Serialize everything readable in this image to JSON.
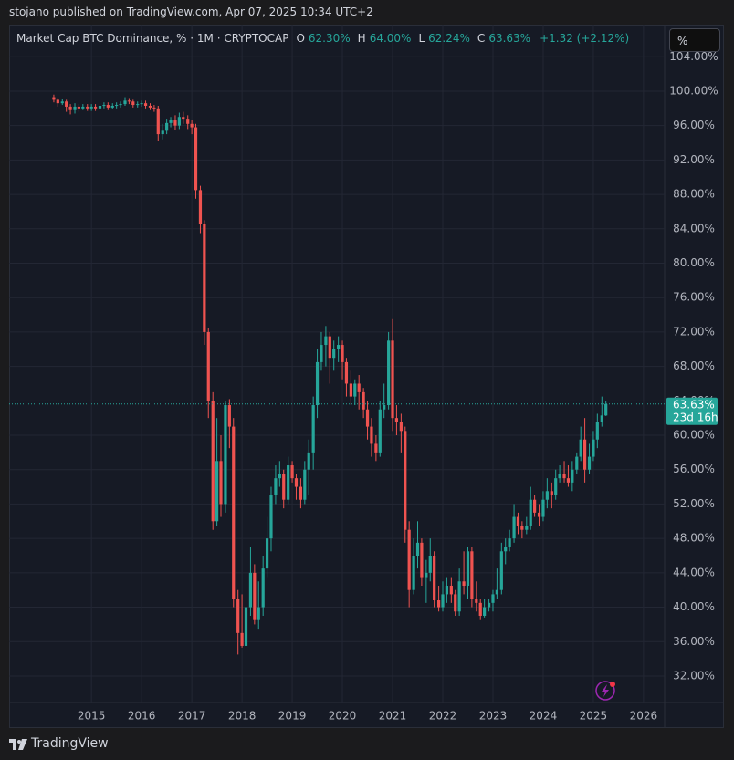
{
  "attribution": "stojano published on TradingView.com, Apr 07, 2025 10:34 UTC+2",
  "footer": "TradingView",
  "chart_data": {
    "type": "candlestick",
    "title": "Market Cap BTC Dominance, % · 1M · CRYPTOCAP",
    "ohlc_legend": [
      {
        "key": "O",
        "value": "62.30%"
      },
      {
        "key": "H",
        "value": "64.00%"
      },
      {
        "key": "L",
        "value": "62.24%"
      },
      {
        "key": "C",
        "value": "63.63%"
      }
    ],
    "change": "+1.32 (+2.12%)",
    "scale_button": "%",
    "up_color": "#26a69a",
    "down_color": "#ef5350",
    "x": [
      2014.25,
      2014.33,
      2014.42,
      2014.5,
      2014.58,
      2014.67,
      2014.75,
      2014.83,
      2014.92,
      2015,
      2015.08,
      2015.17,
      2015.25,
      2015.33,
      2015.42,
      2015.5,
      2015.58,
      2015.67,
      2015.75,
      2015.83,
      2015.92,
      2016,
      2016.08,
      2016.17,
      2016.25,
      2016.33,
      2016.42,
      2016.5,
      2016.58,
      2016.67,
      2016.75,
      2016.83,
      2016.92,
      2017,
      2017.08,
      2017.17,
      2017.25,
      2017.33,
      2017.42,
      2017.5,
      2017.58,
      2017.67,
      2017.75,
      2017.83,
      2017.92,
      2018,
      2018.08,
      2018.17,
      2018.25,
      2018.33,
      2018.42,
      2018.5,
      2018.58,
      2018.67,
      2018.75,
      2018.83,
      2018.92,
      2019,
      2019.08,
      2019.17,
      2019.25,
      2019.33,
      2019.42,
      2019.5,
      2019.58,
      2019.67,
      2019.75,
      2019.83,
      2019.92,
      2020,
      2020.08,
      2020.17,
      2020.25,
      2020.33,
      2020.42,
      2020.5,
      2020.58,
      2020.67,
      2020.75,
      2020.83,
      2020.92,
      2021,
      2021.08,
      2021.17,
      2021.25,
      2021.33,
      2021.42,
      2021.5,
      2021.58,
      2021.67,
      2021.75,
      2021.83,
      2021.92,
      2022,
      2022.08,
      2022.17,
      2022.25,
      2022.33,
      2022.42,
      2022.5,
      2022.58,
      2022.67,
      2022.75,
      2022.83,
      2022.92,
      2023,
      2023.08,
      2023.17,
      2023.25,
      2023.33,
      2023.42,
      2023.5,
      2023.58,
      2023.67,
      2023.75,
      2023.83,
      2023.92,
      2024,
      2024.08,
      2024.17,
      2024.25,
      2024.33,
      2024.42,
      2024.5,
      2024.58,
      2024.67,
      2024.75,
      2024.83,
      2024.92,
      2025,
      2025.08,
      2025.17,
      2025.25
    ],
    "open": [
      99.3,
      99.0,
      98.6,
      98.8,
      98.2,
      97.8,
      98.2,
      98.0,
      98.2,
      98.0,
      98.2,
      98.0,
      98.3,
      98.4,
      98.1,
      98.3,
      98.4,
      98.5,
      98.9,
      98.8,
      98.4,
      98.5,
      98.6,
      98.3,
      98.1,
      98.0,
      95.0,
      95.4,
      96.3,
      96.6,
      96.0,
      97.0,
      96.8,
      96.2,
      95.8,
      88.5,
      84.6,
      72.0,
      64.0,
      50.0,
      57.0,
      52.0,
      63.5,
      61.0,
      41.0,
      37.0,
      35.5,
      40.0,
      44.0,
      38.5,
      40.0,
      44.5,
      48.0,
      53.0,
      55.0,
      55.5,
      52.5,
      56.5,
      55.0,
      54.0,
      52.5,
      56.0,
      58.0,
      63.5,
      68.5,
      70.5,
      71.5,
      69.0,
      70.0,
      70.5,
      68.5,
      66.0,
      64.5,
      66.0,
      65.0,
      63.0,
      61.0,
      59.0,
      58.0,
      63.0,
      63.5,
      71.0,
      62.0,
      61.5,
      60.5,
      49.0,
      42.0,
      46.0,
      47.5,
      43.5,
      44.0,
      46.0,
      40.8,
      40.0,
      41.5,
      42.5,
      41.5,
      39.5,
      43.0,
      42.5,
      46.5,
      41.0,
      40.5,
      39.0,
      40.0,
      40.5,
      41.5,
      42.0,
      46.5,
      47.0,
      48.0,
      50.5,
      49.5,
      49.0,
      49.5,
      52.5,
      51.0,
      50.5,
      52.5,
      53.5,
      53.0,
      55.0,
      55.5,
      55.0,
      54.5,
      56.0,
      57.5,
      59.5,
      56.0,
      57.5,
      59.5,
      61.5,
      62.3
    ],
    "high": [
      99.6,
      99.2,
      99.1,
      99.0,
      98.5,
      98.6,
      98.5,
      98.5,
      98.5,
      98.5,
      98.5,
      98.6,
      98.7,
      98.7,
      98.6,
      98.7,
      98.8,
      99.3,
      99.2,
      99.0,
      98.8,
      98.9,
      98.9,
      98.6,
      98.4,
      98.3,
      96.2,
      96.8,
      97.0,
      97.2,
      97.5,
      97.6,
      97.2,
      96.6,
      96.2,
      89.0,
      85.0,
      72.5,
      65.0,
      62.0,
      60.0,
      64.0,
      64.2,
      62.0,
      42.0,
      41.5,
      41.0,
      47.0,
      45.0,
      43.0,
      46.0,
      50.5,
      54.0,
      56.5,
      57.0,
      56.0,
      57.5,
      57.0,
      55.5,
      55.0,
      57.0,
      59.5,
      64.5,
      70.0,
      72.0,
      72.7,
      72.0,
      71.0,
      71.5,
      71.0,
      69.0,
      67.5,
      66.5,
      67.0,
      65.5,
      64.0,
      62.0,
      60.0,
      64.0,
      66.0,
      72.0,
      73.5,
      63.5,
      62.5,
      61.0,
      50.0,
      48.0,
      50.0,
      48.0,
      45.5,
      48.0,
      46.5,
      42.5,
      43.0,
      43.5,
      43.5,
      42.0,
      44.5,
      46.5,
      47.0,
      47.0,
      43.0,
      41.0,
      41.0,
      41.0,
      42.0,
      44.5,
      47.5,
      48.0,
      49.0,
      52.0,
      51.0,
      50.0,
      50.5,
      54.0,
      53.0,
      52.0,
      53.5,
      55.0,
      54.5,
      56.0,
      56.5,
      57.0,
      56.5,
      57.0,
      58.0,
      61.0,
      62.0,
      59.0,
      60.5,
      62.5,
      64.5,
      64.0
    ],
    "low": [
      98.7,
      98.2,
      98.4,
      97.6,
      97.3,
      97.4,
      97.6,
      97.8,
      97.7,
      97.7,
      97.7,
      97.8,
      98.0,
      97.8,
      97.9,
      98.0,
      98.1,
      98.3,
      98.5,
      98.1,
      98.1,
      98.2,
      98.0,
      97.8,
      97.6,
      94.2,
      94.4,
      95.0,
      95.8,
      95.5,
      95.6,
      96.2,
      95.6,
      95.0,
      87.5,
      83.5,
      70.5,
      62.0,
      49.0,
      49.5,
      50.5,
      51.0,
      58.5,
      40.0,
      34.5,
      35.3,
      35.4,
      39.0,
      38.0,
      37.5,
      39.0,
      43.5,
      46.5,
      52.0,
      54.0,
      51.5,
      52.0,
      54.5,
      52.5,
      51.5,
      52.0,
      53.0,
      56.0,
      62.0,
      67.5,
      68.0,
      66.0,
      67.5,
      68.5,
      66.5,
      64.5,
      63.5,
      63.5,
      63.0,
      62.0,
      59.5,
      57.5,
      57.0,
      57.5,
      62.0,
      63.0,
      60.5,
      60.0,
      58.0,
      47.5,
      40.0,
      41.5,
      44.5,
      42.5,
      40.5,
      43.0,
      40.0,
      39.5,
      39.5,
      40.5,
      40.5,
      39.0,
      39.0,
      41.5,
      41.0,
      40.0,
      39.5,
      38.5,
      38.8,
      39.5,
      39.5,
      41.0,
      41.5,
      45.0,
      46.5,
      47.5,
      48.5,
      48.0,
      48.5,
      49.0,
      50.5,
      49.5,
      50.0,
      51.5,
      51.5,
      52.5,
      54.5,
      54.5,
      54.0,
      53.5,
      55.5,
      57.0,
      54.5,
      55.5,
      57.0,
      58.5,
      61.0,
      62.24
    ],
    "close": [
      99.0,
      98.6,
      98.8,
      98.2,
      97.8,
      98.2,
      98.0,
      98.2,
      98.0,
      98.2,
      98.0,
      98.3,
      98.4,
      98.1,
      98.3,
      98.4,
      98.5,
      98.9,
      98.8,
      98.4,
      98.5,
      98.6,
      98.3,
      98.1,
      98.0,
      95.0,
      95.4,
      96.3,
      96.6,
      96.0,
      97.0,
      96.8,
      96.2,
      95.8,
      88.5,
      84.6,
      72.0,
      64.0,
      50.0,
      57.0,
      52.0,
      63.5,
      61.0,
      41.0,
      37.0,
      35.5,
      40.0,
      44.0,
      38.5,
      40.0,
      44.5,
      48.0,
      53.0,
      55.0,
      55.5,
      52.5,
      56.5,
      55.0,
      54.0,
      52.5,
      56.0,
      58.0,
      63.5,
      68.5,
      70.5,
      71.5,
      69.0,
      70.0,
      70.5,
      68.5,
      66.0,
      64.5,
      66.0,
      65.0,
      63.0,
      61.0,
      59.0,
      58.0,
      63.0,
      63.5,
      71.0,
      62.0,
      61.5,
      60.5,
      49.0,
      42.0,
      46.0,
      47.5,
      43.5,
      44.0,
      46.0,
      40.8,
      40.0,
      41.5,
      42.5,
      41.5,
      39.5,
      43.0,
      42.5,
      46.5,
      41.0,
      40.5,
      39.0,
      40.0,
      40.5,
      41.5,
      42.0,
      46.5,
      47.0,
      48.0,
      50.5,
      49.5,
      49.0,
      49.5,
      52.5,
      51.0,
      50.5,
      52.5,
      53.5,
      53.0,
      55.0,
      55.5,
      55.0,
      54.5,
      56.0,
      57.5,
      59.5,
      56.0,
      57.5,
      59.5,
      61.5,
      62.3,
      63.63
    ],
    "last_price": {
      "value": 63.63,
      "label": "63.63%"
    },
    "countdown": "23d 16h",
    "xlim": [
      2013.36,
      2026.42
    ],
    "xticks": [
      2015,
      2016,
      2017,
      2018,
      2019,
      2020,
      2021,
      2022,
      2023,
      2024,
      2025,
      2026
    ],
    "ylim": [
      28.92,
      107.74
    ],
    "yticks": [
      {
        "value": 32,
        "label": "32.00%"
      },
      {
        "value": 36,
        "label": "36.00%"
      },
      {
        "value": 40,
        "label": "40.00%"
      },
      {
        "value": 44,
        "label": "44.00%"
      },
      {
        "value": 48,
        "label": "48.00%"
      },
      {
        "value": 52,
        "label": "52.00%"
      },
      {
        "value": 56,
        "label": "56.00%"
      },
      {
        "value": 60,
        "label": "60.00%"
      },
      {
        "value": 64,
        "label": "64.00%"
      },
      {
        "value": 68,
        "label": "68.00%"
      },
      {
        "value": 72,
        "label": "72.00%"
      },
      {
        "value": 76,
        "label": "76.00%"
      },
      {
        "value": 80,
        "label": "80.00%"
      },
      {
        "value": 84,
        "label": "84.00%"
      },
      {
        "value": 88,
        "label": "88.00%"
      },
      {
        "value": 92,
        "label": "92.00%"
      },
      {
        "value": 96,
        "label": "96.00%"
      },
      {
        "value": 100,
        "label": "100.00%"
      },
      {
        "value": 104,
        "label": "104.00%"
      }
    ],
    "grid": true
  }
}
